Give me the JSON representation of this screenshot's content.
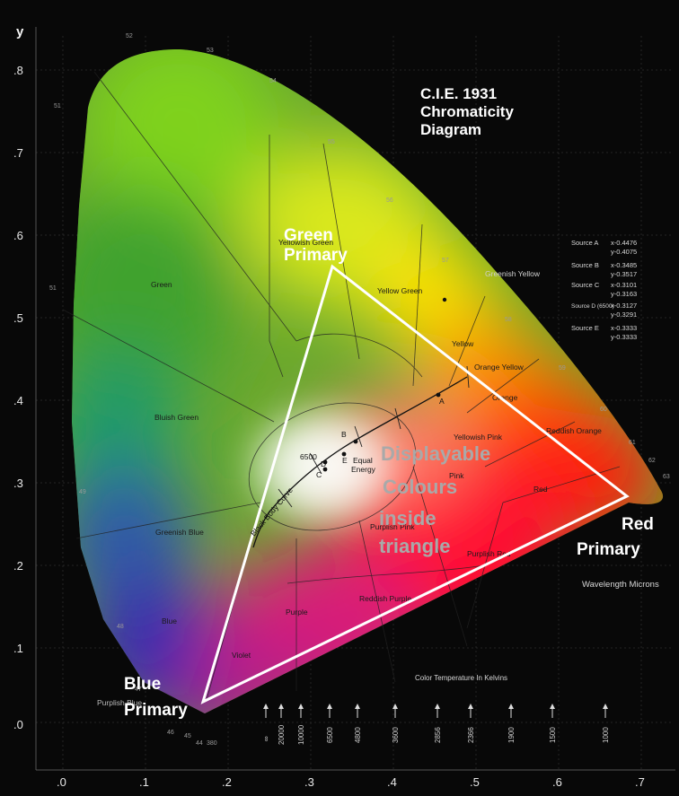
{
  "title": {
    "line1": "C.I.E. 1931",
    "line2": "Chromaticity",
    "line3": "Diagram"
  },
  "axes": {
    "y_label": "y",
    "x_ticks": [
      ".0",
      ".1",
      ".2",
      ".3",
      ".4",
      ".5",
      ".6",
      ".7"
    ],
    "y_ticks": [
      ".8",
      ".7",
      ".6",
      ".5",
      ".4",
      ".3",
      ".2",
      ".1",
      ".0"
    ]
  },
  "primaries": {
    "green": {
      "line1": "Green",
      "line2": "Primary"
    },
    "red": {
      "line1": "Red",
      "line2": "Primary"
    },
    "blue": {
      "line1": "Blue",
      "line2": "Primary"
    }
  },
  "displayable": {
    "line1": "Displayable",
    "line2": "Colours",
    "line3": "inside",
    "line4": "triangle"
  },
  "regions": [
    "Green",
    "Yellowish Green",
    "Yellow Green",
    "Greenish Yellow",
    "Yellow",
    "Orange Yellow",
    "Orange",
    "Reddish Orange",
    "Red",
    "Yellowish Pink",
    "Pink",
    "Purplish Pink",
    "Purplish Red",
    "Reddish Purple",
    "Purple",
    "Bluish Green",
    "Greenish Blue",
    "Blue",
    "Violet",
    "Purplish Blue"
  ],
  "sources": [
    {
      "name": "Source A",
      "x": "x-0.4476",
      "y": "y-0.4075"
    },
    {
      "name": "Source B",
      "x": "x-0.3485",
      "y": "y-0.3517"
    },
    {
      "name": "Source C",
      "x": "x-0.3101",
      "y": "y-0.3163"
    },
    {
      "name": "Source D (6500)",
      "x": "x-0.3127",
      "y": "y-0.3291"
    },
    {
      "name": "Source E",
      "x": "x-0.3333",
      "y": "y-0.3333"
    }
  ],
  "white_points": {
    "a": "A",
    "b": "B",
    "c": "C",
    "d": "D",
    "e": "E",
    "t6500": "6500",
    "equal1": "Equal",
    "equal2": "Energy",
    "curve": "Black Body Curve"
  },
  "wavelength_label": "Wavelength Microns",
  "wavelength_ticks": [
    "51",
    "52",
    "53",
    "54",
    "55",
    "56",
    "57",
    "58",
    "59",
    "60",
    "61",
    "62",
    "63",
    "49",
    "48",
    "47",
    "46",
    "45",
    "44",
    "43",
    "380"
  ],
  "temperature_label": "Color Temperature In Kelvins",
  "temperatures": [
    "∞",
    "20000",
    "10000",
    "6500",
    "4800",
    "3600",
    "2856",
    "2366",
    "1900",
    "1500",
    "1000"
  ],
  "colors": {
    "background": "#080808",
    "triangle": "#ffffff",
    "displayable_text": "#a9a9a9"
  }
}
